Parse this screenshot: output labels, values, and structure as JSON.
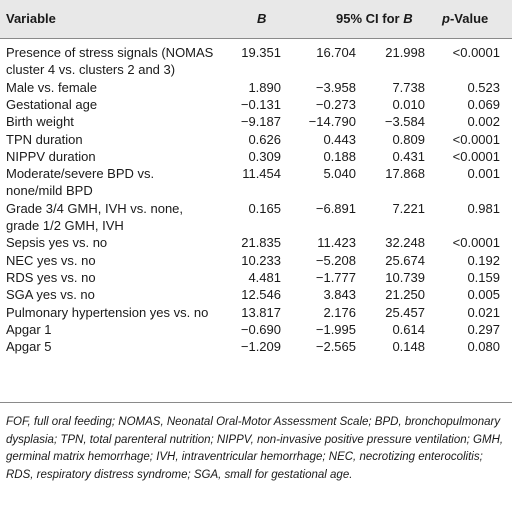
{
  "table": {
    "headers": {
      "variable": "Variable",
      "b": "B",
      "ci": "95% CI for B",
      "ci_prefix": "95% CI for ",
      "ci_italic": "B",
      "p": "p-Value",
      "p_italic": "p",
      "p_suffix": "-Value"
    },
    "rows": [
      {
        "label": [
          "Presence of stress signals (NOMAS",
          "cluster 4 vs. clusters 2 and 3)"
        ],
        "b": "19.351",
        "lo": "16.704",
        "hi": "21.998",
        "p": "<0.0001"
      },
      {
        "label": [
          "Male vs. female"
        ],
        "b": "1.890",
        "lo": "−3.958",
        "hi": "7.738",
        "p": "0.523"
      },
      {
        "label": [
          "Gestational age"
        ],
        "b": "−0.131",
        "lo": "−0.273",
        "hi": "0.010",
        "p": "0.069"
      },
      {
        "label": [
          "Birth weight"
        ],
        "b": "−9.187",
        "lo": "−14.790",
        "hi": "−3.584",
        "p": "0.002"
      },
      {
        "label": [
          "TPN duration"
        ],
        "b": "0.626",
        "lo": "0.443",
        "hi": "0.809",
        "p": "<0.0001"
      },
      {
        "label": [
          "NIPPV duration"
        ],
        "b": "0.309",
        "lo": "0.188",
        "hi": "0.431",
        "p": "<0.0001"
      },
      {
        "label": [
          "Moderate/severe BPD vs.",
          "none/mild BPD"
        ],
        "b": "11.454",
        "lo": "5.040",
        "hi": "17.868",
        "p": "0.001"
      },
      {
        "label": [
          "Grade 3/4 GMH, IVH vs. none,",
          "grade 1/2 GMH, IVH"
        ],
        "b": "0.165",
        "lo": "−6.891",
        "hi": "7.221",
        "p": "0.981"
      },
      {
        "label": [
          "Sepsis yes vs. no"
        ],
        "b": "21.835",
        "lo": "11.423",
        "hi": "32.248",
        "p": "<0.0001"
      },
      {
        "label": [
          "NEC yes vs. no"
        ],
        "b": "10.233",
        "lo": "−5.208",
        "hi": "25.674",
        "p": "0.192"
      },
      {
        "label": [
          "RDS yes vs. no"
        ],
        "b": "4.481",
        "lo": "−1.777",
        "hi": "10.739",
        "p": "0.159"
      },
      {
        "label": [
          "SGA yes vs. no"
        ],
        "b": "12.546",
        "lo": "3.843",
        "hi": "21.250",
        "p": "0.005"
      },
      {
        "label": [
          "Pulmonary hypertension yes vs. no"
        ],
        "b": "13.817",
        "lo": "2.176",
        "hi": "25.457",
        "p": "0.021"
      },
      {
        "label": [
          "Apgar 1"
        ],
        "b": "−0.690",
        "lo": "−1.995",
        "hi": "0.614",
        "p": "0.297"
      },
      {
        "label": [
          "Apgar 5"
        ],
        "b": "−1.209",
        "lo": "−2.565",
        "hi": "0.148",
        "p": "0.080"
      }
    ]
  },
  "footnote": "FOF, full oral feeding; NOMAS, Neonatal Oral-Motor Assessment Scale; BPD, bronchopulmonary dysplasia; TPN, total parenteral nutrition; NIPPV, non-invasive positive pressure ventilation; GMH, germinal matrix hemorrhage; IVH, intraventricular hemorrhage; NEC, necrotizing enterocolitis; RDS, respiratory distress syndrome; SGA, small for gestational age."
}
